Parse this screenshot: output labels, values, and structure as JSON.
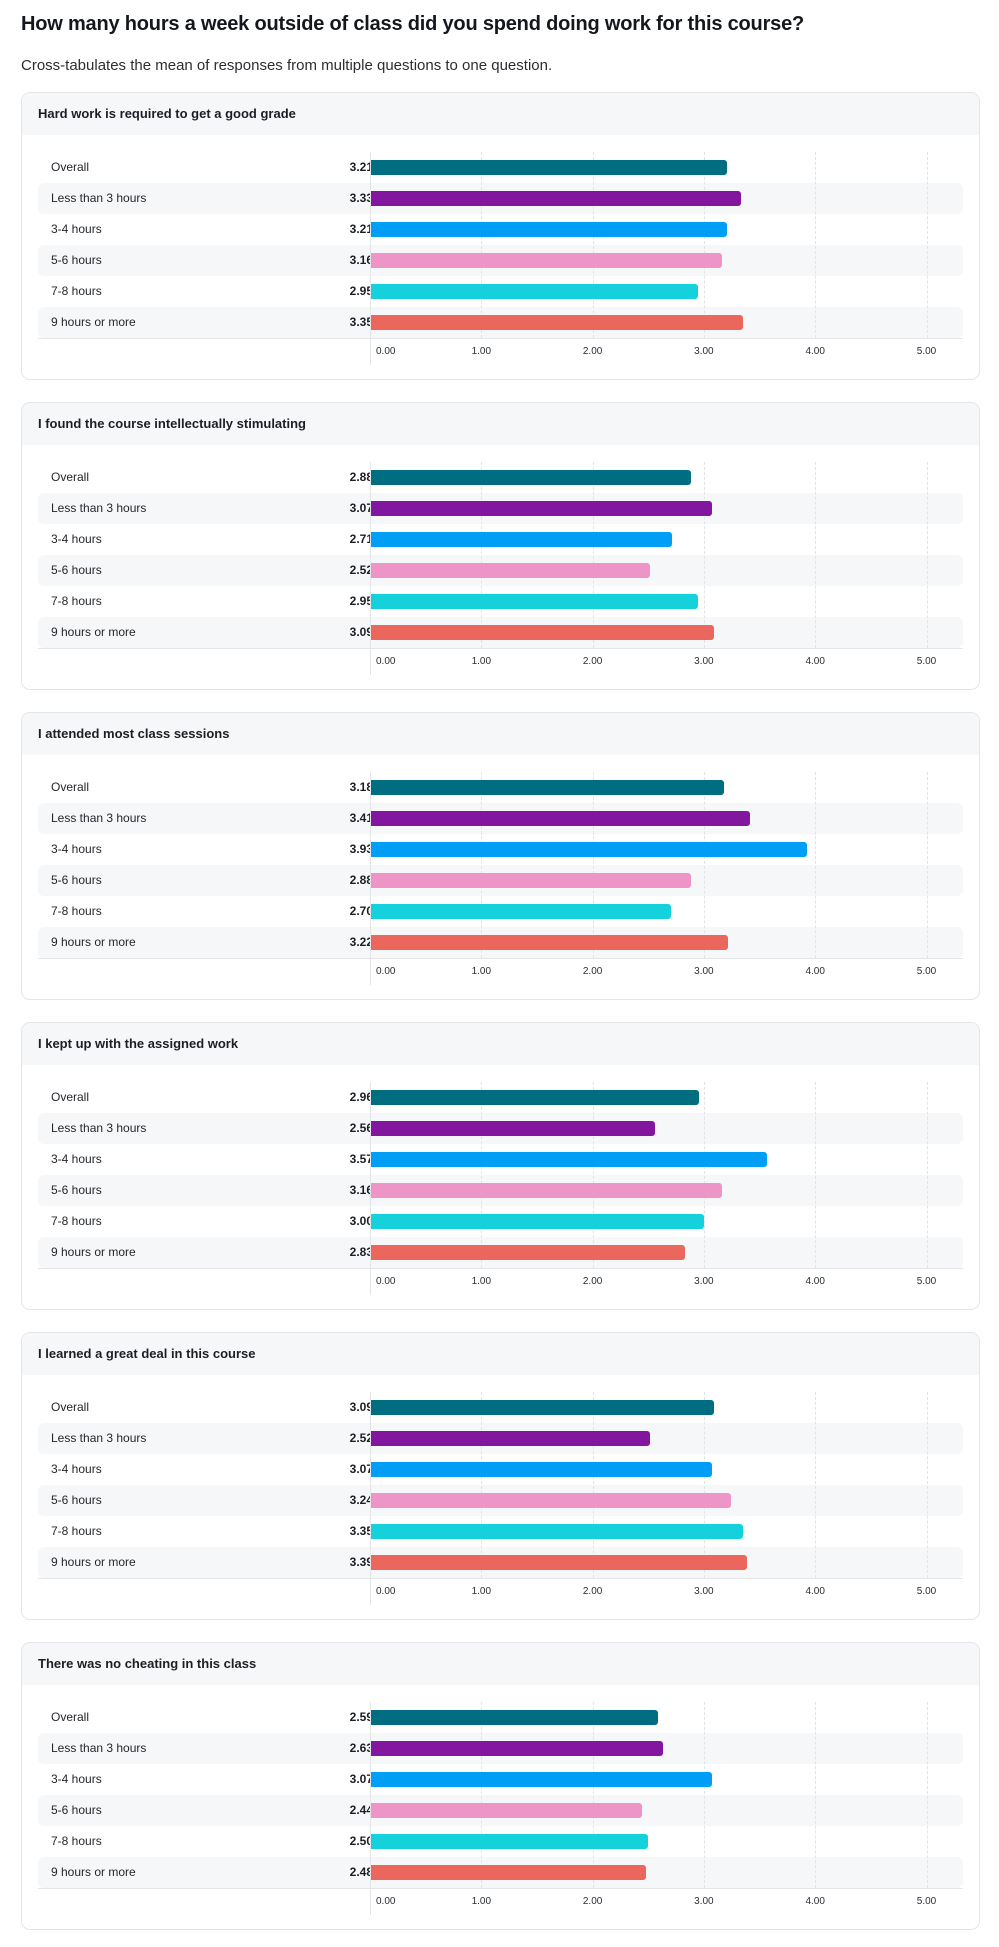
{
  "header": {
    "title": "How many hours a week outside of class did you spend doing work for this course?",
    "subtitle": "Cross-tabulates the mean of responses from multiple questions to one question."
  },
  "colors": {
    "Overall": "#006D80",
    "Less than 3 hours": "#82169E",
    "3-4 hours": "#009FF5",
    "5-6 hours": "#EE95C8",
    "7-8 hours": "#14D1DC",
    "9 hours or more": "#EB675E"
  },
  "chart_data": [
    {
      "type": "bar",
      "orientation": "horizontal",
      "title": "Hard work is required to get a good grade",
      "categories": [
        "Overall",
        "Less than 3 hours",
        "3-4 hours",
        "5-6 hours",
        "7-8 hours",
        "9 hours or more"
      ],
      "values": [
        3.21,
        3.33,
        3.21,
        3.16,
        2.95,
        3.35
      ],
      "value_labels": [
        "3.21",
        "3.33",
        "3.21",
        "3.16",
        "2.95",
        "3.35"
      ],
      "xlim": [
        0,
        5
      ],
      "xticks": [
        "0.00",
        "1.00",
        "2.00",
        "3.00",
        "4.00",
        "5.00"
      ],
      "grid": true
    },
    {
      "type": "bar",
      "orientation": "horizontal",
      "title": "I found the course intellectually stimulating",
      "categories": [
        "Overall",
        "Less than 3 hours",
        "3-4 hours",
        "5-6 hours",
        "7-8 hours",
        "9 hours or more"
      ],
      "values": [
        2.88,
        3.07,
        2.71,
        2.52,
        2.95,
        3.09
      ],
      "value_labels": [
        "2.88",
        "3.07",
        "2.71",
        "2.52",
        "2.95",
        "3.09"
      ],
      "xlim": [
        0,
        5
      ],
      "xticks": [
        "0.00",
        "1.00",
        "2.00",
        "3.00",
        "4.00",
        "5.00"
      ],
      "grid": true
    },
    {
      "type": "bar",
      "orientation": "horizontal",
      "title": "I attended most class sessions",
      "categories": [
        "Overall",
        "Less than 3 hours",
        "3-4 hours",
        "5-6 hours",
        "7-8 hours",
        "9 hours or more"
      ],
      "values": [
        3.18,
        3.41,
        3.93,
        2.88,
        2.7,
        3.22
      ],
      "value_labels": [
        "3.18",
        "3.41",
        "3.93",
        "2.88",
        "2.70",
        "3.22"
      ],
      "xlim": [
        0,
        5
      ],
      "xticks": [
        "0.00",
        "1.00",
        "2.00",
        "3.00",
        "4.00",
        "5.00"
      ],
      "grid": true
    },
    {
      "type": "bar",
      "orientation": "horizontal",
      "title": "I kept up with the assigned work",
      "categories": [
        "Overall",
        "Less than 3 hours",
        "3-4 hours",
        "5-6 hours",
        "7-8 hours",
        "9 hours or more"
      ],
      "values": [
        2.96,
        2.56,
        3.57,
        3.16,
        3.0,
        2.83
      ],
      "value_labels": [
        "2.96",
        "2.56",
        "3.57",
        "3.16",
        "3.00",
        "2.83"
      ],
      "xlim": [
        0,
        5
      ],
      "xticks": [
        "0.00",
        "1.00",
        "2.00",
        "3.00",
        "4.00",
        "5.00"
      ],
      "grid": true
    },
    {
      "type": "bar",
      "orientation": "horizontal",
      "title": "I learned a great deal in this course",
      "categories": [
        "Overall",
        "Less than 3 hours",
        "3-4 hours",
        "5-6 hours",
        "7-8 hours",
        "9 hours or more"
      ],
      "values": [
        3.09,
        2.52,
        3.07,
        3.24,
        3.35,
        3.39
      ],
      "value_labels": [
        "3.09",
        "2.52",
        "3.07",
        "3.24",
        "3.35",
        "3.39"
      ],
      "xlim": [
        0,
        5
      ],
      "xticks": [
        "0.00",
        "1.00",
        "2.00",
        "3.00",
        "4.00",
        "5.00"
      ],
      "grid": true
    },
    {
      "type": "bar",
      "orientation": "horizontal",
      "title": "There was no cheating in this class",
      "categories": [
        "Overall",
        "Less than 3 hours",
        "3-4 hours",
        "5-6 hours",
        "7-8 hours",
        "9 hours or more"
      ],
      "values": [
        2.59,
        2.63,
        3.07,
        2.44,
        2.5,
        2.48
      ],
      "value_labels": [
        "2.59",
        "2.63",
        "3.07",
        "2.44",
        "2.50",
        "2.48"
      ],
      "xlim": [
        0,
        5
      ],
      "xticks": [
        "0.00",
        "1.00",
        "2.00",
        "3.00",
        "4.00",
        "5.00"
      ],
      "grid": true
    }
  ]
}
